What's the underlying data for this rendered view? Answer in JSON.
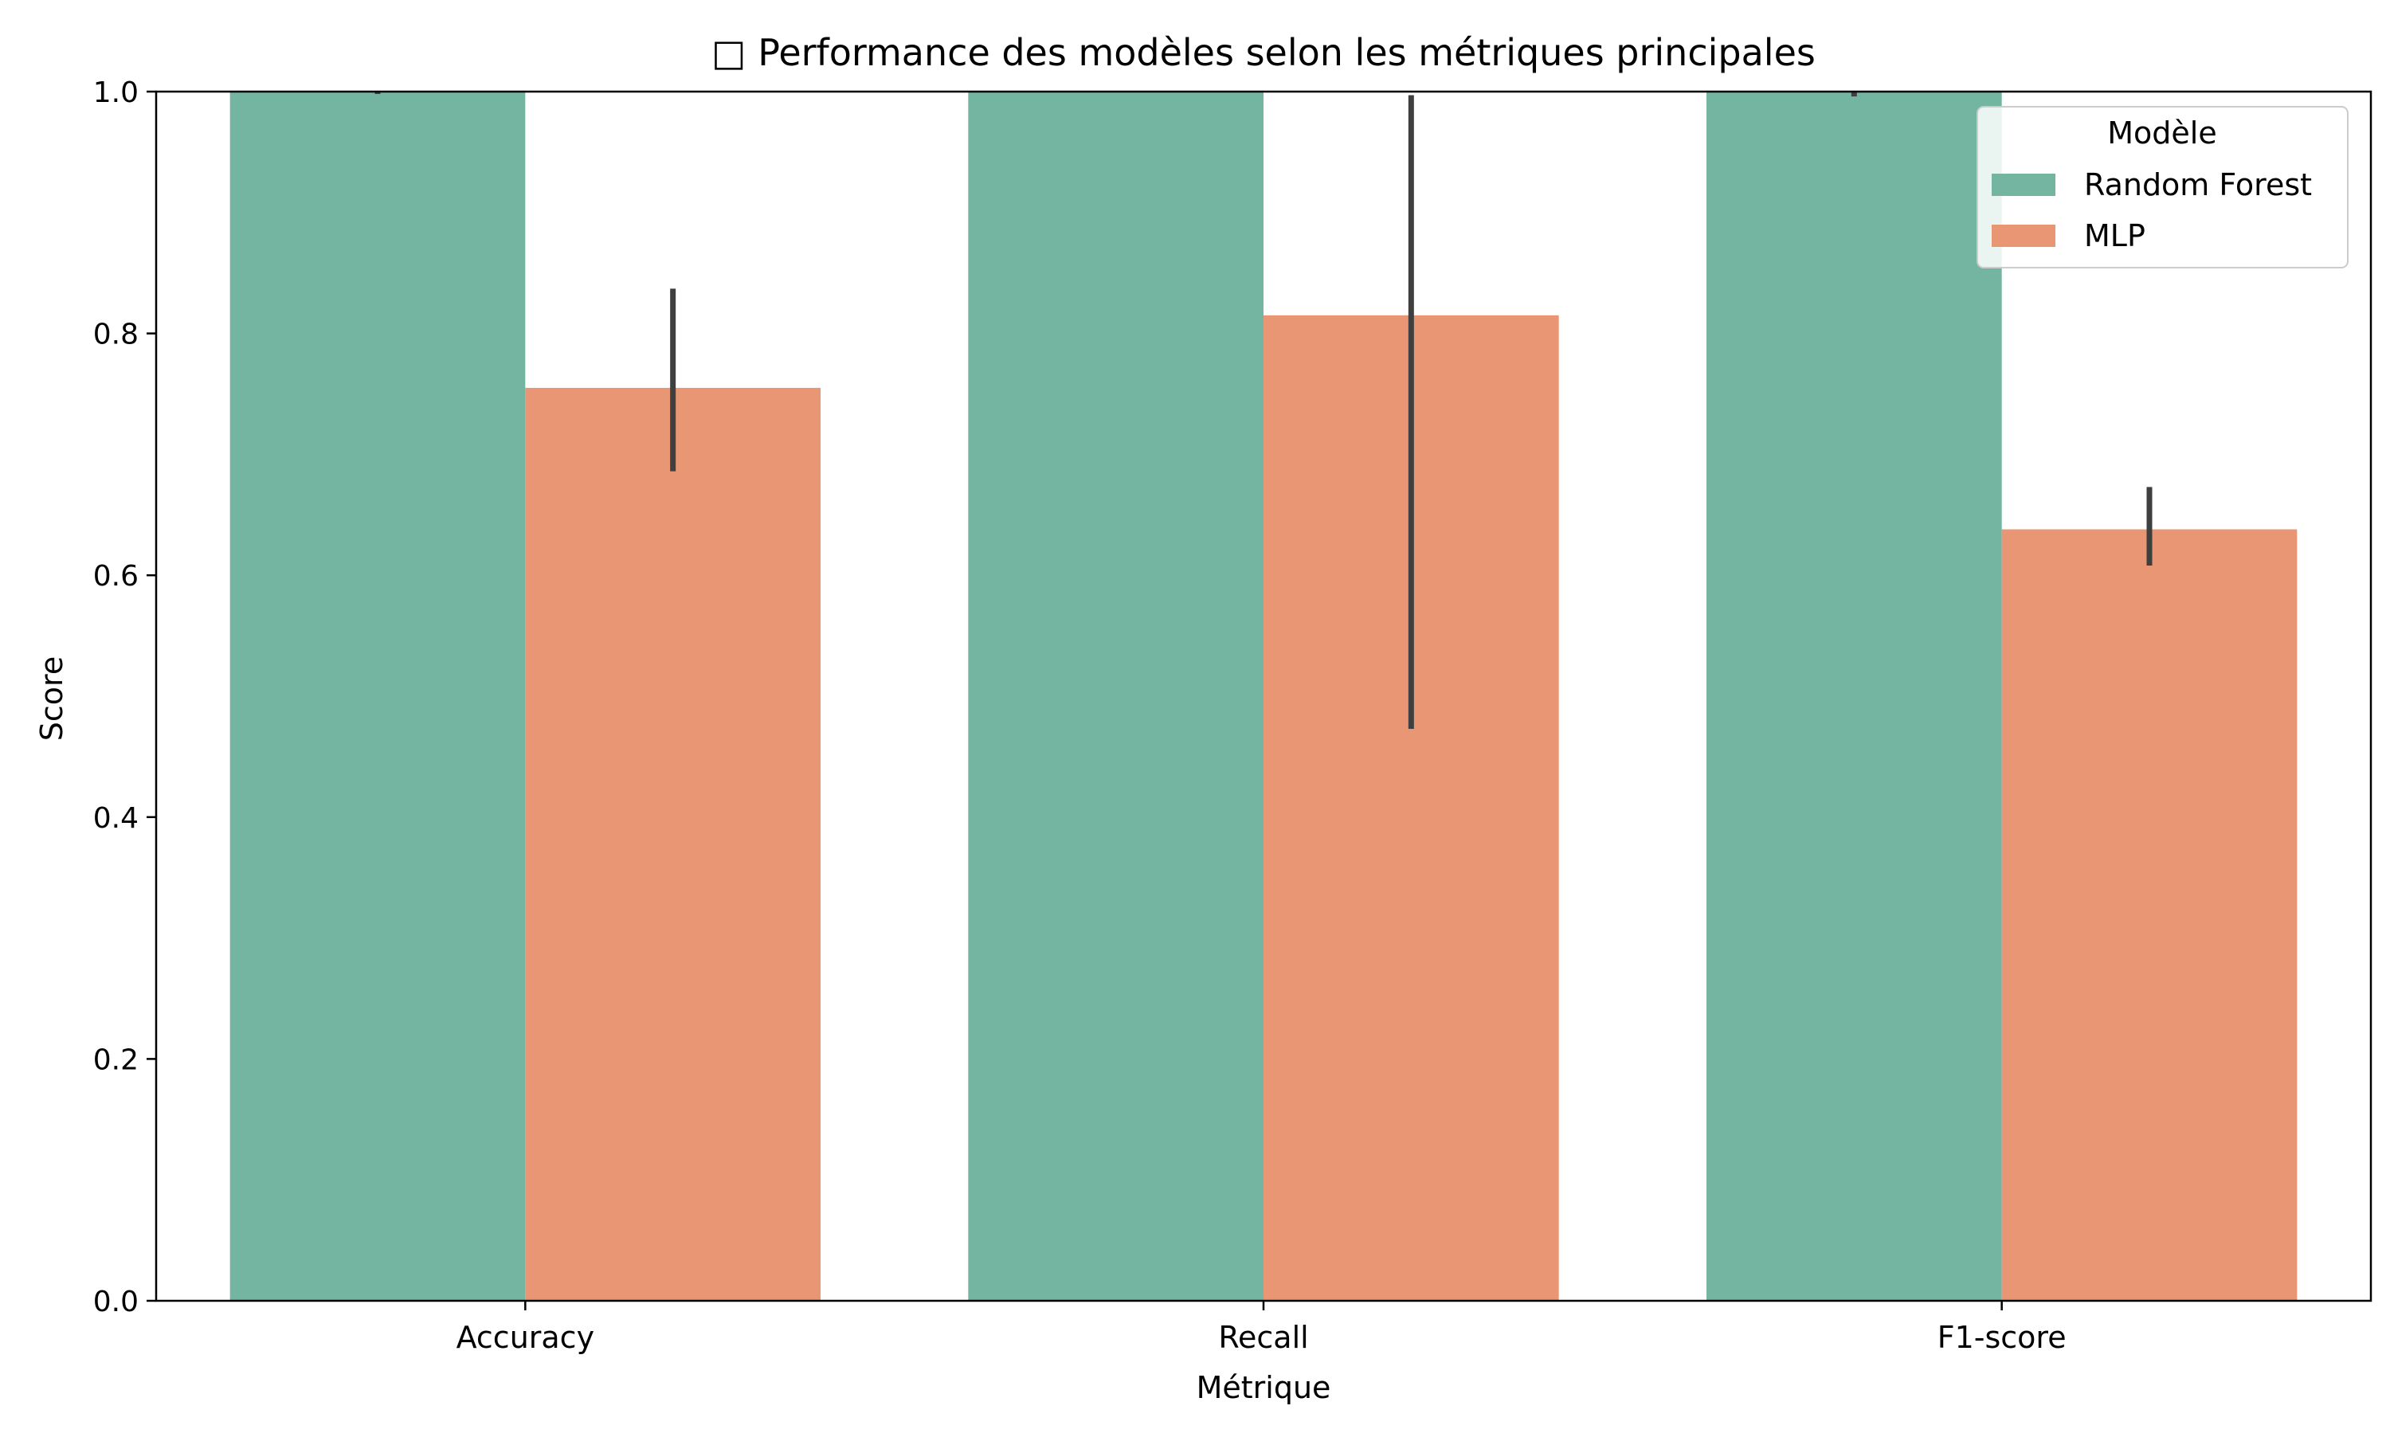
{
  "chart_data": {
    "type": "bar",
    "title": "□ Performance des modèles selon les métriques principales",
    "xlabel": "Métrique",
    "ylabel": "Score",
    "ylim": [
      0,
      1.0
    ],
    "yticks": [
      "0.0",
      "0.2",
      "0.4",
      "0.6",
      "0.8",
      "1.0"
    ],
    "categories": [
      "Accuracy",
      "Recall",
      "F1-score"
    ],
    "series": [
      {
        "name": "Random Forest",
        "color": "#73b5a0",
        "values": [
          1.0,
          1.0,
          1.0
        ],
        "err_low": [
          0.998,
          1.0,
          0.996
        ],
        "err_high": [
          1.0,
          1.0,
          1.0
        ]
      },
      {
        "name": "MLP",
        "color": "#e89674",
        "values": [
          0.755,
          0.815,
          0.638
        ],
        "err_low": [
          0.686,
          0.473,
          0.608
        ],
        "err_high": [
          0.837,
          0.997,
          0.673
        ]
      }
    ],
    "legend": {
      "title": "Modèle",
      "position": "top-right"
    },
    "grid": false,
    "error_bar_color": "#3f3f3f"
  }
}
